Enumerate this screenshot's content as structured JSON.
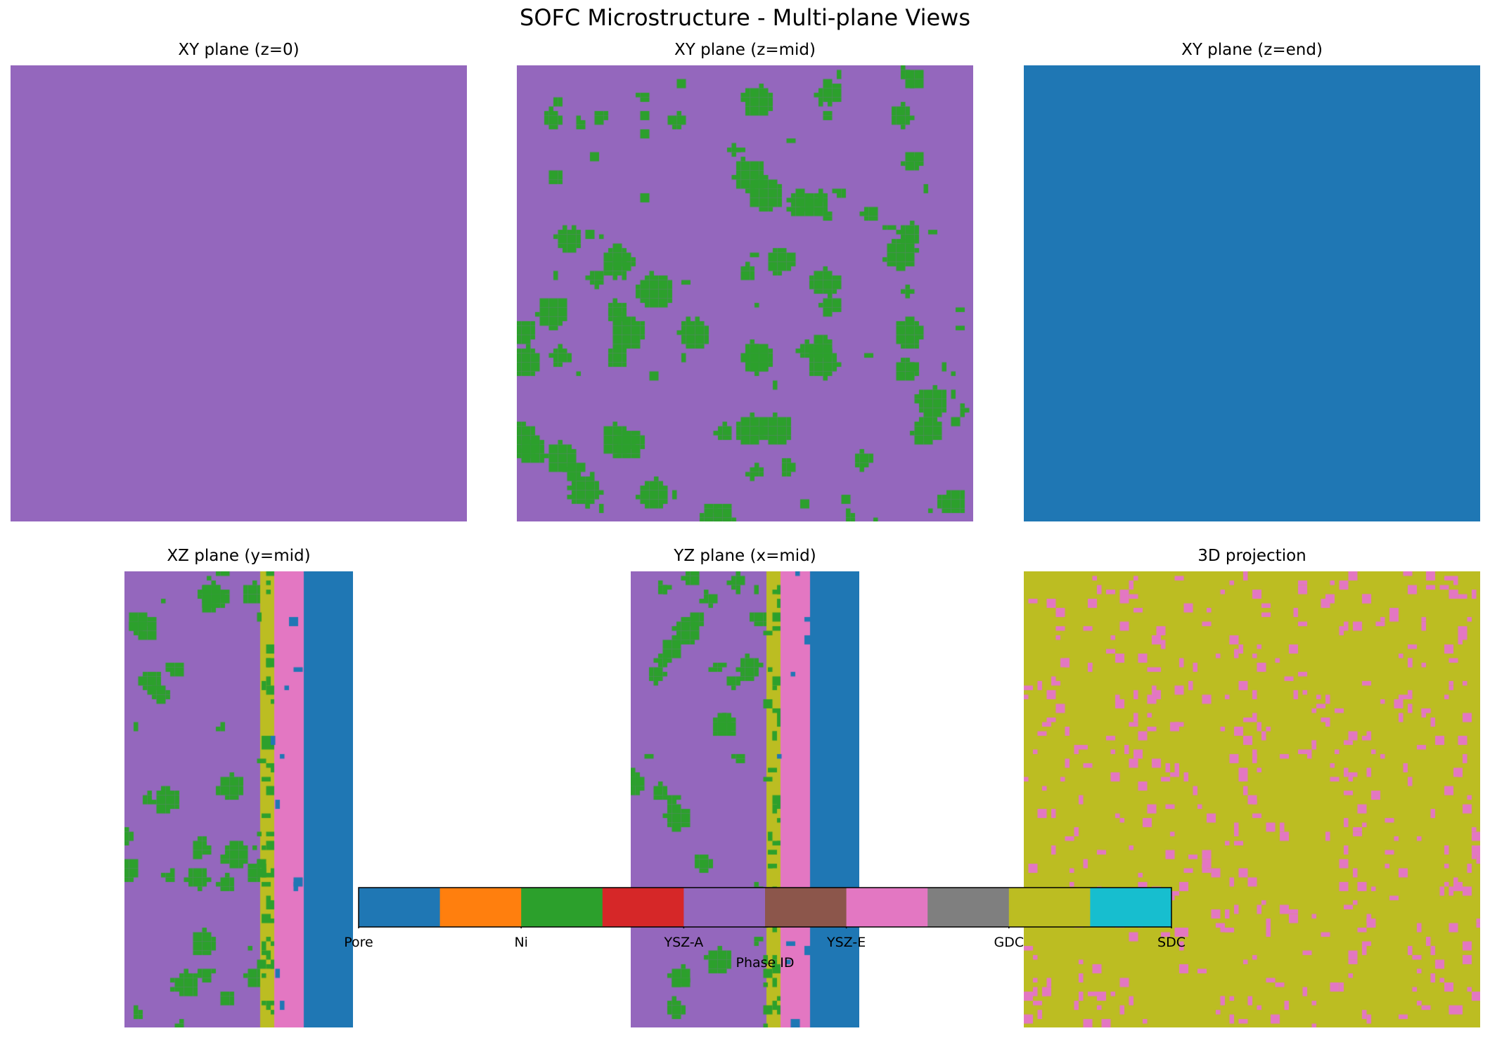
{
  "figure": {
    "suptitle": "SOFC Microstructure - Multi-plane Views"
  },
  "phase_colors": {
    "Pore": "#1f77b4",
    "Ni": "#2ca02c",
    "YSZ-A": "#9467bd",
    "YSZ-E": "#e377c2",
    "GDC": "#bcbd22",
    "SDC": "#17becf"
  },
  "chart_data": [
    {
      "type": "heatmap",
      "title": "XY plane (z=0)",
      "dominant_phase": "YSZ-A",
      "description_of_content": "uniform YSZ-A"
    },
    {
      "type": "heatmap",
      "title": "XY plane (z=mid)",
      "background_phase": "YSZ-A",
      "inclusion_phase": "Ni",
      "inclusion_fraction": 0.12
    },
    {
      "type": "heatmap",
      "title": "XY plane (z=end)",
      "dominant_phase": "Pore"
    },
    {
      "type": "heatmap",
      "title": "XZ plane (y=mid)",
      "layers": [
        {
          "phase": "YSZ-A",
          "from": 0.0,
          "to": 0.595,
          "inclusion_phase": "Ni",
          "inclusion_fraction": 0.1
        },
        {
          "phase": "GDC",
          "from": 0.595,
          "to": 0.655,
          "inclusion_phase": "Ni",
          "inclusion_fraction": 0.25
        },
        {
          "phase": "YSZ-E",
          "from": 0.655,
          "to": 0.785,
          "inclusion_phase": "Pore",
          "inclusion_fraction": 0.05
        },
        {
          "phase": "Pore",
          "from": 0.785,
          "to": 1.0
        }
      ]
    },
    {
      "type": "heatmap",
      "title": "YZ plane (x=mid)",
      "layers": [
        {
          "phase": "YSZ-A",
          "from": 0.0,
          "to": 0.595,
          "inclusion_phase": "Ni",
          "inclusion_fraction": 0.1
        },
        {
          "phase": "GDC",
          "from": 0.595,
          "to": 0.655,
          "inclusion_phase": "Ni",
          "inclusion_fraction": 0.25
        },
        {
          "phase": "YSZ-E",
          "from": 0.655,
          "to": 0.785,
          "inclusion_phase": "Pore",
          "inclusion_fraction": 0.05
        },
        {
          "phase": "Pore",
          "from": 0.785,
          "to": 1.0
        }
      ]
    },
    {
      "type": "heatmap",
      "title": "3D projection",
      "background_phase": "GDC",
      "inclusion_phase": "YSZ-E",
      "inclusion_fraction": 0.05
    }
  ],
  "colorbar": {
    "label": "Phase ID",
    "segments": [
      "#1f77b4",
      "#ff7f0e",
      "#2ca02c",
      "#d62728",
      "#9467bd",
      "#8c564b",
      "#e377c2",
      "#7f7f7f",
      "#bcbd22",
      "#17becf"
    ],
    "ticks": [
      "Pore",
      "Ni",
      "YSZ-A",
      "YSZ-E",
      "GDC",
      "SDC"
    ]
  }
}
